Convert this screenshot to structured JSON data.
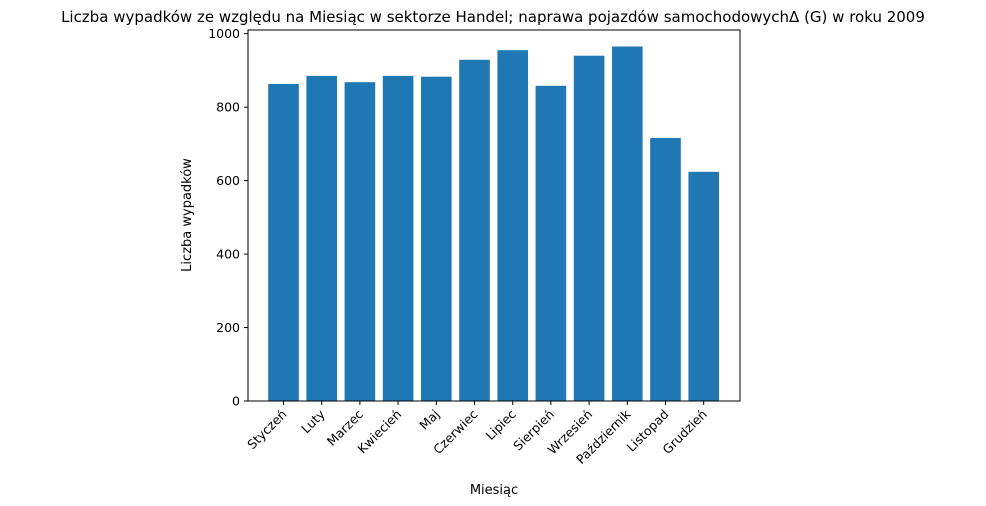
{
  "chart_data": {
    "type": "bar",
    "title": "Liczba wypadków ze względu na Miesiąc w sektorze Handel; naprawa pojazdów samochodowychΔ  (G) w roku 2009",
    "xlabel": "Miesiąc",
    "ylabel": "Liczba wypadków",
    "categories": [
      "Styczeń",
      "Luty",
      "Marzec",
      "Kwiecień",
      "Maj",
      "Czerwiec",
      "Lipiec",
      "Sierpień",
      "Wrzesień",
      "Październik",
      "Listopad",
      "Grudzień"
    ],
    "values": [
      863,
      885,
      868,
      885,
      883,
      929,
      955,
      858,
      940,
      965,
      716,
      624
    ],
    "ylim": [
      0,
      1010
    ],
    "yticks": [
      0,
      200,
      400,
      600,
      800,
      1000
    ],
    "grid": false,
    "color": "#1f77b4"
  }
}
